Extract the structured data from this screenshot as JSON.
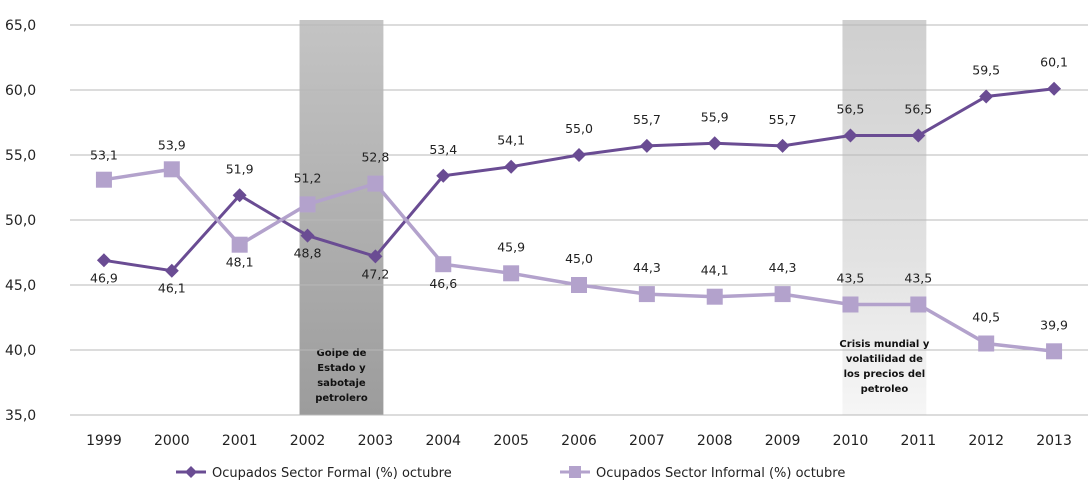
{
  "chart_data": {
    "type": "line",
    "categories": [
      "1999",
      "2000",
      "2001",
      "2002",
      "2003",
      "2004",
      "2005",
      "2006",
      "2007",
      "2008",
      "2009",
      "2010",
      "2011",
      "2012",
      "2013"
    ],
    "series": [
      {
        "name": "Ocupados Sector Formal (%) octubre",
        "values": [
          46.9,
          46.1,
          51.9,
          48.8,
          47.2,
          53.4,
          54.1,
          55.0,
          55.7,
          55.9,
          55.7,
          56.5,
          56.5,
          59.5,
          60.1
        ],
        "labels": [
          "46,9",
          "46,1",
          "51,9",
          "48,8",
          "47,2",
          "53,4",
          "54,1",
          "55,0",
          "55,7",
          "55,9",
          "55,7",
          "56,5",
          "56,5",
          "59,5",
          "60,1"
        ],
        "color": "#6a4c93",
        "marker": "diamond"
      },
      {
        "name": "Ocupados Sector Informal (%) octubre",
        "values": [
          53.1,
          53.9,
          48.1,
          51.2,
          52.8,
          46.6,
          45.9,
          45.0,
          44.3,
          44.1,
          44.3,
          43.5,
          43.5,
          40.5,
          39.9
        ],
        "labels": [
          "53,1",
          "53,9",
          "48,1",
          "51,2",
          "52,8",
          "46,6",
          "45,9",
          "45,0",
          "44,3",
          "44,1",
          "44,3",
          "43,5",
          "43,5",
          "40,5",
          "39,9"
        ],
        "color": "#b3a2cc",
        "marker": "square"
      }
    ],
    "ylim": [
      35,
      65
    ],
    "yticks": [
      "35,0",
      "40,0",
      "45,0",
      "50,0",
      "55,0",
      "60,0",
      "65,0"
    ],
    "grid": true,
    "legend": "bottom",
    "annotations": [
      {
        "from": "2002",
        "to": "2003",
        "lines": [
          "Golpe de",
          "Estado y",
          "sabotaje",
          "petrolero"
        ]
      },
      {
        "from": "2010",
        "to": "2011",
        "lines": [
          "Crisis mundial y",
          "volatilidad  de",
          "los precios del",
          "petroleo"
        ]
      }
    ]
  }
}
